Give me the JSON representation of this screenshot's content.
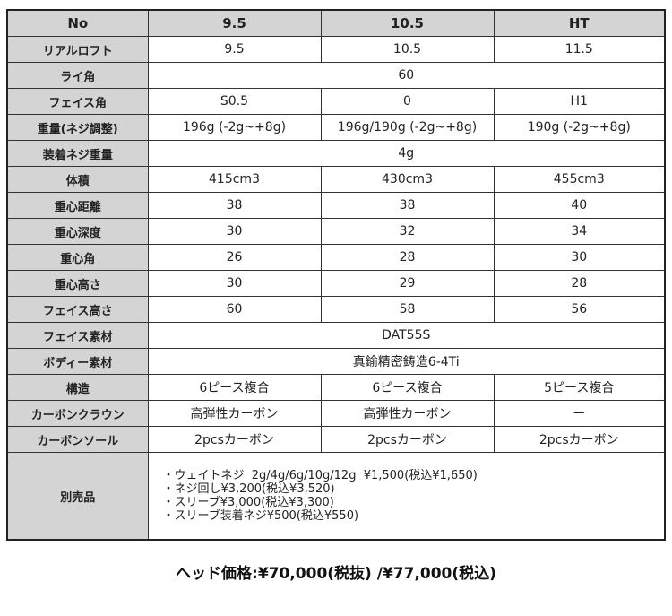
{
  "table": {
    "header": [
      "No",
      "9.5",
      "10.5",
      "HT"
    ],
    "rows": [
      {
        "label": "リアルロフト",
        "cells": [
          "9.5",
          "10.5",
          "11.5"
        ]
      },
      {
        "label": "ライ角",
        "cells": [
          "60"
        ]
      },
      {
        "label": "フェイス角",
        "cells": [
          "S0.5",
          "0",
          "H1"
        ]
      },
      {
        "label": "重量(ネジ調整)",
        "cells": [
          "196g (-2g~+8g)",
          "196g/190g (-2g~+8g)",
          "190g (-2g~+8g)"
        ]
      },
      {
        "label": "装着ネジ重量",
        "cells": [
          "4g"
        ]
      },
      {
        "label": "体積",
        "cells": [
          "415cm3",
          "430cm3",
          "455cm3"
        ]
      },
      {
        "label": "重心距離",
        "cells": [
          "38",
          "38",
          "40"
        ]
      },
      {
        "label": "重心深度",
        "cells": [
          "30",
          "32",
          "34"
        ]
      },
      {
        "label": "重心角",
        "cells": [
          "26",
          "28",
          "30"
        ]
      },
      {
        "label": "重心高さ",
        "cells": [
          "30",
          "29",
          "28"
        ]
      },
      {
        "label": "フェイス高さ",
        "cells": [
          "60",
          "58",
          "56"
        ]
      },
      {
        "label": "フェイス素材",
        "cells": [
          "DAT55S"
        ]
      },
      {
        "label": "ボディー素材",
        "cells": [
          "真鍮精密鋳造6-4Ti"
        ]
      },
      {
        "label": "構造",
        "cells": [
          "6ピース複合",
          "6ピース複合",
          "5ピース複合"
        ]
      },
      {
        "label": "カーボンクラウン",
        "cells": [
          "高弾性カーボン",
          "高弾性カーボン",
          "ー"
        ]
      },
      {
        "label": "カーボンソール",
        "cells": [
          "2pcsカーボン",
          "2pcsカーボン",
          "2pcsカーボン"
        ]
      }
    ],
    "accessories": {
      "label": "別売品",
      "items": [
        "・ウェイトネジ  2g/4g/6g/10g/12g  ¥1,500(税込¥1,650)",
        "・ネジ回し¥3,200(税込¥3,520)",
        "・スリーブ¥3,000(税込¥3,300)",
        "・スリーブ装着ネジ¥500(税込¥550)"
      ]
    }
  },
  "footer": {
    "price": "ヘッド価格:¥70,000(税抜) /¥77,000(税込)"
  }
}
